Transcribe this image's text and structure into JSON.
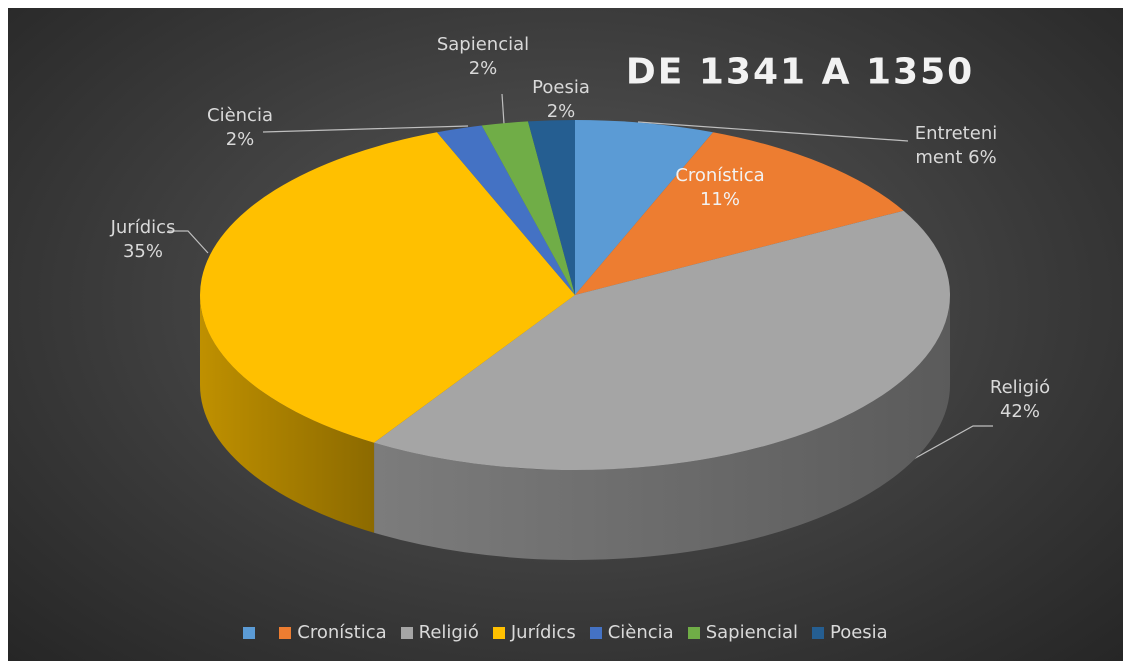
{
  "chart_data": {
    "type": "pie3d",
    "title": "DE 1341 A 1350",
    "categories": [
      "Entreteniment",
      "Cronística",
      "Religió",
      "Jurídics",
      "Ciència",
      "Sapiencial",
      "Poesia"
    ],
    "values": [
      6,
      11,
      42,
      35,
      2,
      2,
      2
    ],
    "value_labels": [
      "6%",
      "11%",
      "42%",
      "35%",
      "2%",
      "2%",
      "2%"
    ],
    "legend_labels": [
      null,
      "Cronística",
      "Religió",
      "Jurídics",
      "Ciència",
      "Sapiencial",
      "Poesia"
    ],
    "colors": [
      "#5b9bd5",
      "#ed7d31",
      "#a5a5a5",
      "#ffc000",
      "#4472c4",
      "#70ad47",
      "#255e91"
    ],
    "legend": "bottom"
  }
}
